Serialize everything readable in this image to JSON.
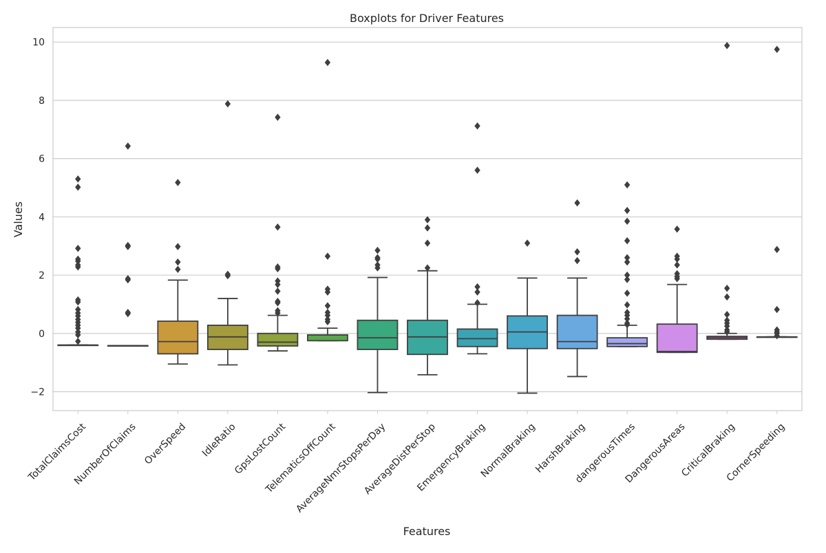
{
  "chart_data": {
    "type": "box",
    "title": "Boxplots for Driver Features",
    "xlabel": "Features",
    "ylabel": "Values",
    "ylim": [
      -2.65,
      10.5
    ],
    "yticks": [
      -2,
      0,
      2,
      4,
      6,
      8,
      10
    ],
    "ytick_labels": [
      "−2",
      "0",
      "2",
      "4",
      "6",
      "8",
      "10"
    ],
    "grid": "horizontal",
    "categories": [
      "TotalClaimsCost",
      "NumberOfClaims",
      "OverSpeed",
      "IdleRatio",
      "GpsLostCount",
      "TelematicsOffCount",
      "AverageNmrStopsPerDay",
      "AverageDistPerStop",
      "EmergencyBraking",
      "NormalBraking",
      "HarshBraking",
      "dangerousTimes",
      "DangerousAreas",
      "CriticalBraking",
      "CornerSpeeding"
    ],
    "colors": [
      "#3274a1",
      "#e1812c",
      "#c99a3b",
      "#a39b3d",
      "#8fa23c",
      "#59a84b",
      "#3aa97e",
      "#3ba89e",
      "#3ba4b3",
      "#46a7c8",
      "#6aa9e0",
      "#a5a6f0",
      "#cf8ee8",
      "#df76c1",
      "#e575a4"
    ],
    "boxes": [
      {
        "whislo": -0.4,
        "q1": -0.4,
        "med": -0.4,
        "q3": -0.4,
        "whishi": -0.4,
        "fliers": [
          -0.27,
          -0.05,
          0.05,
          0.18,
          0.28,
          0.38,
          0.48,
          0.6,
          0.7,
          0.82,
          1.08,
          1.15,
          2.28,
          2.35,
          2.48,
          2.55,
          2.92,
          5.02,
          5.3
        ]
      },
      {
        "whislo": -0.42,
        "q1": -0.42,
        "med": -0.42,
        "q3": -0.42,
        "whishi": -0.42,
        "fliers": [
          0.68,
          0.72,
          1.84,
          1.88,
          2.98,
          3.02,
          6.43
        ]
      },
      {
        "whislo": -1.05,
        "q1": -0.7,
        "med": -0.28,
        "q3": 0.42,
        "whishi": 1.83,
        "fliers": [
          2.2,
          2.45,
          2.98,
          5.18
        ]
      },
      {
        "whislo": -1.08,
        "q1": -0.55,
        "med": -0.12,
        "q3": 0.28,
        "whishi": 1.2,
        "fliers": [
          1.98,
          2.03,
          7.88
        ]
      },
      {
        "whislo": -0.6,
        "q1": -0.43,
        "med": -0.3,
        "q3": 0.0,
        "whishi": 0.62,
        "fliers": [
          0.7,
          0.78,
          1.05,
          1.1,
          1.45,
          1.68,
          1.8,
          2.22,
          2.28,
          3.65,
          7.42
        ]
      },
      {
        "whislo": -0.25,
        "q1": -0.25,
        "med": -0.05,
        "q3": -0.05,
        "whishi": 0.18,
        "fliers": [
          0.4,
          0.48,
          0.62,
          0.72,
          0.95,
          1.42,
          1.52,
          2.65,
          9.3
        ]
      },
      {
        "whislo": -2.03,
        "q1": -0.55,
        "med": -0.15,
        "q3": 0.45,
        "whishi": 1.92,
        "fliers": [
          2.25,
          2.35,
          2.55,
          2.6,
          2.85
        ]
      },
      {
        "whislo": -1.42,
        "q1": -0.72,
        "med": -0.12,
        "q3": 0.45,
        "whishi": 2.15,
        "fliers": [
          2.25,
          3.1,
          3.62,
          3.9
        ]
      },
      {
        "whislo": -0.7,
        "q1": -0.45,
        "med": -0.18,
        "q3": 0.15,
        "whishi": 1.0,
        "fliers": [
          1.05,
          1.42,
          1.6,
          5.6,
          7.12
        ]
      },
      {
        "whislo": -2.05,
        "q1": -0.52,
        "med": 0.05,
        "q3": 0.6,
        "whishi": 1.9,
        "fliers": [
          3.1
        ]
      },
      {
        "whislo": -1.48,
        "q1": -0.52,
        "med": -0.28,
        "q3": 0.62,
        "whishi": 1.9,
        "fliers": [
          2.5,
          2.8,
          4.48
        ]
      },
      {
        "whislo": -0.45,
        "q1": -0.45,
        "med": -0.35,
        "q3": -0.15,
        "whishi": 0.28,
        "fliers": [
          0.3,
          0.35,
          0.5,
          0.62,
          0.72,
          0.98,
          1.38,
          1.85,
          2.0,
          2.45,
          2.6,
          3.18,
          3.85,
          4.22,
          5.1
        ]
      },
      {
        "whislo": -0.65,
        "q1": -0.65,
        "med": -0.62,
        "q3": 0.32,
        "whishi": 1.68,
        "fliers": [
          1.88,
          1.95,
          2.05,
          2.35,
          2.55,
          2.65,
          3.58
        ]
      },
      {
        "whislo": -0.2,
        "q1": -0.2,
        "med": -0.15,
        "q3": -0.1,
        "whishi": 0.0,
        "fliers": [
          0.05,
          0.12,
          0.25,
          0.35,
          0.45,
          0.65,
          1.25,
          1.55,
          9.88
        ]
      },
      {
        "whislo": -0.12,
        "q1": -0.12,
        "med": -0.12,
        "q3": -0.12,
        "whishi": -0.12,
        "fliers": [
          -0.08,
          0.0,
          0.05,
          0.12,
          0.82,
          2.88,
          9.75
        ]
      }
    ]
  }
}
